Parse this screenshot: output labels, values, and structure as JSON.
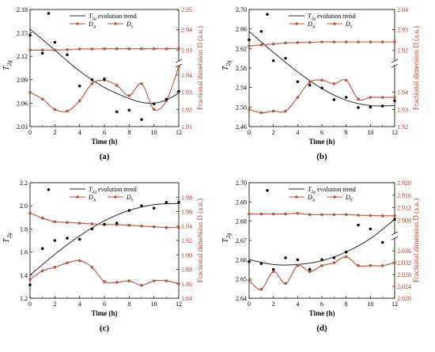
{
  "colors": {
    "trend": "#2b2b2b",
    "da": "#b5573a",
    "ds": "#b5573a",
    "right_axis": "#c0392b",
    "points": "#111111"
  },
  "legend": {
    "trend": "T2g evolution trend",
    "da": "DA",
    "ds": "DS"
  },
  "chart_data": [
    {
      "type": "line",
      "panel": "(a)",
      "xlabel": "Time (h)",
      "ylabel": "T2g",
      "y2label": "Fractional dimension D (a.u.)",
      "xlim": [
        0,
        12
      ],
      "xticks": [
        0,
        2,
        4,
        6,
        8,
        10,
        12
      ],
      "ylim": [
        2.03,
        2.18
      ],
      "yticks": [
        2.03,
        2.06,
        2.09,
        2.12,
        2.15,
        2.18
      ],
      "y2_upper": {
        "lim": [
          2.925,
          2.95
        ],
        "ticks": [
          2.93,
          2.94,
          2.95
        ]
      },
      "y2_lower": {
        "lim": [
          1.91,
          1.945
        ],
        "ticks": [
          1.91,
          1.92,
          1.93,
          1.94
        ]
      },
      "points": [
        [
          0,
          2.147
        ],
        [
          1,
          2.124
        ],
        [
          1.5,
          2.175
        ],
        [
          2,
          2.138
        ],
        [
          3,
          2.122
        ],
        [
          4,
          2.082
        ],
        [
          5,
          2.09
        ],
        [
          6,
          2.091
        ],
        [
          7,
          2.049
        ],
        [
          8,
          2.051
        ],
        [
          9,
          2.039
        ],
        [
          10,
          2.059
        ],
        [
          11,
          2.065
        ],
        [
          12,
          2.075
        ]
      ],
      "trend": [
        [
          0,
          2.155
        ],
        [
          2,
          2.128
        ],
        [
          4,
          2.101
        ],
        [
          6,
          2.08
        ],
        [
          8,
          2.066
        ],
        [
          9,
          2.061
        ],
        [
          10,
          2.06
        ],
        [
          11,
          2.064
        ],
        [
          12,
          2.073
        ]
      ],
      "DA": {
        "axis": "lower",
        "values": [
          [
            0,
            1.93
          ],
          [
            1,
            1.926
          ],
          [
            2,
            1.92
          ],
          [
            3,
            1.919
          ],
          [
            4,
            1.925
          ],
          [
            5,
            1.935
          ],
          [
            6,
            1.937
          ],
          [
            7,
            1.934
          ],
          [
            8,
            1.928
          ],
          [
            9,
            1.935
          ],
          [
            10,
            1.92
          ],
          [
            11,
            1.925
          ],
          [
            12,
            1.945
          ]
        ]
      },
      "DS": {
        "axis": "upper",
        "values": [
          [
            0,
            2.93
          ],
          [
            1,
            2.93
          ],
          [
            2,
            2.93
          ],
          [
            3,
            2.9302
          ],
          [
            4,
            2.9305
          ],
          [
            5,
            2.9305
          ],
          [
            6,
            2.9306
          ],
          [
            7,
            2.9306
          ],
          [
            8,
            2.9306
          ],
          [
            9,
            2.9306
          ],
          [
            10,
            2.9306
          ],
          [
            11,
            2.9306
          ],
          [
            12,
            2.9308
          ]
        ]
      }
    },
    {
      "type": "line",
      "panel": "(b)",
      "xlabel": "Time (h)",
      "ylabel": "T2g",
      "y2label": "Fractional dimension D (a.u.)",
      "xlim": [
        0,
        12
      ],
      "xticks": [
        0,
        2,
        4,
        6,
        8,
        10,
        12
      ],
      "ylim": [
        2.46,
        2.7
      ],
      "yticks": [
        2.46,
        2.5,
        2.54,
        2.58,
        2.62,
        2.66,
        2.7
      ],
      "y2_upper": {
        "lim": [
          2.915,
          2.94
        ],
        "ticks": [
          2.92,
          2.93,
          2.94
        ]
      },
      "y2_lower": {
        "lim": [
          1.92,
          1.955
        ],
        "ticks": [
          1.92,
          1.93,
          1.94
        ]
      },
      "points": [
        [
          0,
          2.638
        ],
        [
          1,
          2.655
        ],
        [
          1.5,
          2.69
        ],
        [
          2,
          2.595
        ],
        [
          3,
          2.6
        ],
        [
          4,
          2.552
        ],
        [
          5,
          2.545
        ],
        [
          6,
          2.539
        ],
        [
          7,
          2.515
        ],
        [
          8,
          2.52
        ],
        [
          9,
          2.499
        ],
        [
          10,
          2.5
        ],
        [
          11,
          2.502
        ],
        [
          12,
          2.513
        ]
      ],
      "trend": [
        [
          0,
          2.655
        ],
        [
          2,
          2.612
        ],
        [
          4,
          2.572
        ],
        [
          6,
          2.538
        ],
        [
          8,
          2.514
        ],
        [
          10,
          2.503
        ],
        [
          12,
          2.503
        ]
      ],
      "DA": {
        "axis": "lower",
        "values": [
          [
            0,
            1.93
          ],
          [
            1,
            1.928
          ],
          [
            2,
            1.929
          ],
          [
            3,
            1.929
          ],
          [
            4,
            1.937
          ],
          [
            5,
            1.946
          ],
          [
            6,
            1.947
          ],
          [
            7,
            1.945
          ],
          [
            8,
            1.947
          ],
          [
            9,
            1.936
          ],
          [
            10,
            1.937
          ],
          [
            11,
            1.937
          ],
          [
            12,
            1.937
          ]
        ]
      },
      "DS": {
        "axis": "upper",
        "values": [
          [
            0,
            2.922
          ],
          [
            1,
            2.9225
          ],
          [
            2,
            2.923
          ],
          [
            3,
            2.9235
          ],
          [
            4,
            2.9237
          ],
          [
            5,
            2.9238
          ],
          [
            6,
            2.924
          ],
          [
            7,
            2.924
          ],
          [
            8,
            2.924
          ],
          [
            9,
            2.924
          ],
          [
            10,
            2.924
          ],
          [
            11,
            2.924
          ],
          [
            12,
            2.924
          ]
        ]
      }
    },
    {
      "type": "line",
      "panel": "(c)",
      "xlabel": "Time (h)",
      "ylabel": "T2g",
      "y2label": "Fractional dimension D (a.u.)",
      "xlim": [
        0,
        12
      ],
      "xticks": [
        0,
        2,
        4,
        6,
        8,
        10,
        12
      ],
      "ylim": [
        1.2,
        2.2
      ],
      "yticks": [
        1.2,
        1.4,
        1.6,
        1.8,
        2.0,
        2.2
      ],
      "y2": {
        "lim": [
          1.84,
          2.0
        ],
        "ticks": [
          1.84,
          1.86,
          1.88,
          1.9,
          1.92,
          1.94,
          1.96,
          1.98
        ]
      },
      "points": [
        [
          0,
          1.315
        ],
        [
          1,
          1.63
        ],
        [
          1.5,
          2.14
        ],
        [
          2,
          1.7
        ],
        [
          3,
          1.72
        ],
        [
          4,
          1.71
        ],
        [
          5,
          1.8
        ],
        [
          6,
          1.84
        ],
        [
          7,
          1.85
        ],
        [
          8,
          1.96
        ],
        [
          9,
          2.0
        ],
        [
          10,
          1.98
        ],
        [
          11,
          2.03
        ],
        [
          12,
          2.03
        ]
      ],
      "trend": [
        [
          0,
          1.4
        ],
        [
          2,
          1.58
        ],
        [
          4,
          1.74
        ],
        [
          6,
          1.87
        ],
        [
          8,
          1.96
        ],
        [
          10,
          2.01
        ],
        [
          12,
          2.02
        ]
      ],
      "DA": {
        "values": [
          [
            0,
            1.866
          ],
          [
            1,
            1.878
          ],
          [
            2,
            1.883
          ],
          [
            3,
            1.889
          ],
          [
            4,
            1.892
          ],
          [
            5,
            1.883
          ],
          [
            6,
            1.863
          ],
          [
            7,
            1.862
          ],
          [
            8,
            1.864
          ],
          [
            9,
            1.858
          ],
          [
            10,
            1.864
          ],
          [
            11,
            1.864
          ],
          [
            12,
            1.86
          ]
        ]
      },
      "DS": {
        "values": [
          [
            0,
            1.958
          ],
          [
            1,
            1.951
          ],
          [
            2,
            1.946
          ],
          [
            3,
            1.945
          ],
          [
            4,
            1.944
          ],
          [
            5,
            1.943
          ],
          [
            6,
            1.942
          ],
          [
            7,
            1.942
          ],
          [
            8,
            1.941
          ],
          [
            9,
            1.94
          ],
          [
            10,
            1.939
          ],
          [
            11,
            1.938
          ],
          [
            12,
            1.938
          ]
        ]
      }
    },
    {
      "type": "line",
      "panel": "(d)",
      "xlabel": "Time (h)",
      "ylabel": "T2g",
      "y2label": "Fractional dimension D (a.u.)",
      "xlim": [
        0,
        12
      ],
      "xticks": [
        0,
        2,
        4,
        6,
        8,
        10,
        12
      ],
      "ylim": [
        2.64,
        2.7
      ],
      "yticks": [
        2.64,
        2.65,
        2.66,
        2.67,
        2.68,
        2.69,
        2.7
      ],
      "y2_upper": {
        "lim": [
          2.904,
          2.92
        ],
        "ticks": [
          2.908,
          2.912,
          2.916,
          2.92
        ]
      },
      "y2_lower": {
        "lim": [
          2.02,
          2.04
        ],
        "ticks": [
          2.02,
          2.024,
          2.028,
          2.032,
          2.036
        ]
      },
      "points": [
        [
          0,
          2.659
        ],
        [
          1,
          2.658
        ],
        [
          1.5,
          2.696
        ],
        [
          2,
          2.655
        ],
        [
          3,
          2.661
        ],
        [
          4,
          2.66
        ],
        [
          5,
          2.655
        ],
        [
          6,
          2.66
        ],
        [
          7,
          2.661
        ],
        [
          8,
          2.664
        ],
        [
          9,
          2.678
        ],
        [
          10,
          2.676
        ],
        [
          11,
          2.669
        ],
        [
          12,
          2.681
        ]
      ],
      "trend": [
        [
          0,
          2.66
        ],
        [
          2,
          2.6575
        ],
        [
          4,
          2.6575
        ],
        [
          6,
          2.6595
        ],
        [
          8,
          2.664
        ],
        [
          10,
          2.671
        ],
        [
          12,
          2.681
        ]
      ],
      "DA": {
        "axis": "lower",
        "values": [
          [
            0,
            2.026
          ],
          [
            1,
            2.023
          ],
          [
            2,
            2.029
          ],
          [
            3,
            2.025
          ],
          [
            4,
            2.031
          ],
          [
            5,
            2.029
          ],
          [
            6,
            2.031
          ],
          [
            7,
            2.032
          ],
          [
            8,
            2.034
          ],
          [
            9,
            2.031
          ],
          [
            10,
            2.031
          ],
          [
            11,
            2.031
          ],
          [
            12,
            2.032
          ]
        ]
      },
      "DS": {
        "axis": "upper",
        "values": [
          [
            0,
            2.91
          ],
          [
            1,
            2.91
          ],
          [
            2,
            2.91
          ],
          [
            3,
            2.91
          ],
          [
            4,
            2.9102
          ],
          [
            5,
            2.9098
          ],
          [
            6,
            2.9098
          ],
          [
            7,
            2.9098
          ],
          [
            8,
            2.9098
          ],
          [
            9,
            2.9096
          ],
          [
            10,
            2.9095
          ],
          [
            11,
            2.9094
          ],
          [
            12,
            2.9094
          ]
        ]
      }
    }
  ]
}
